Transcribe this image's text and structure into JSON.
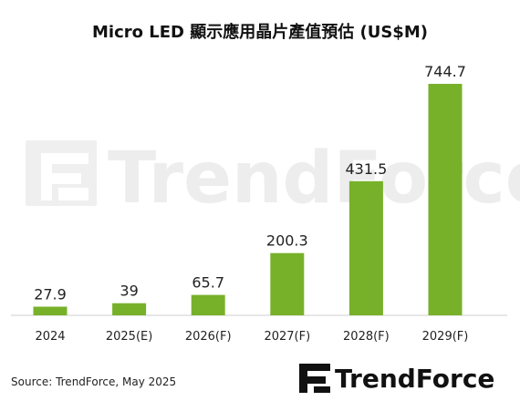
{
  "chart_data": {
    "type": "bar",
    "title": "Micro LED 顯示應用晶片產值預估 (US$M)",
    "categories": [
      "2024",
      "2025(E)",
      "2026(F)",
      "2027(F)",
      "2028(F)",
      "2029(F)"
    ],
    "values": [
      27.9,
      39,
      65.7,
      200.3,
      431.5,
      744.7
    ],
    "value_labels": [
      "27.9",
      "39",
      "65.7",
      "200.3",
      "431.5",
      "744.7"
    ],
    "xlabel": "",
    "ylabel": "",
    "ylim": [
      0,
      800
    ],
    "grid": false,
    "legend": "none",
    "bar_color": "#77b12a"
  },
  "footer": {
    "source": "Source: TrendForce, May 2025"
  },
  "brand": {
    "logo_text": "TrendForce",
    "watermark_text": "TrendForce"
  },
  "colors": {
    "bar": "#77b12a",
    "axis": "#cfcfcf",
    "watermark": "#ededed",
    "text": "#222222"
  }
}
